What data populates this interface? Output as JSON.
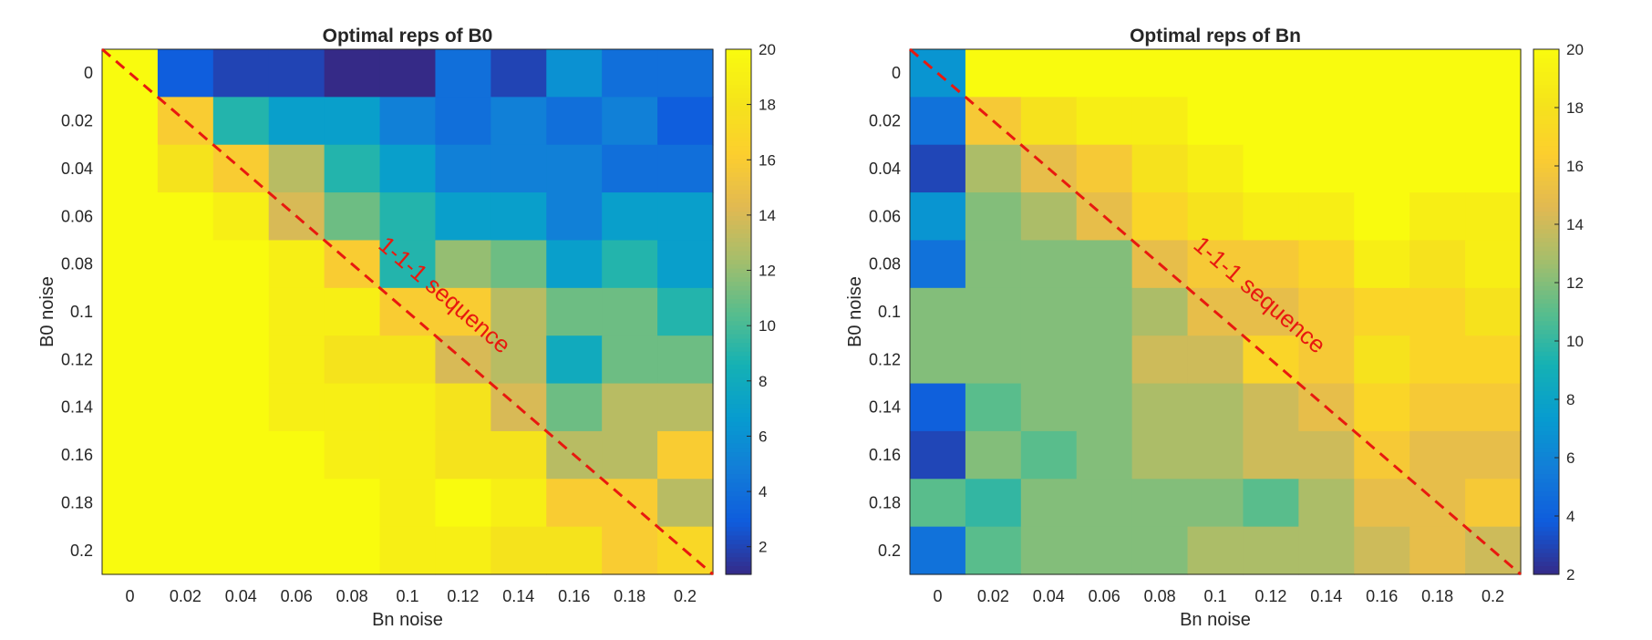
{
  "chart_data": [
    {
      "type": "heatmap",
      "title": "Optimal reps of B0",
      "xlabel": "Bn noise",
      "ylabel": "B0 noise",
      "x": [
        0,
        0.02,
        0.04,
        0.06,
        0.08,
        0.1,
        0.12,
        0.14,
        0.16,
        0.18,
        0.2
      ],
      "y": [
        0,
        0.02,
        0.04,
        0.06,
        0.08,
        0.1,
        0.12,
        0.14,
        0.16,
        0.18,
        0.2
      ],
      "x_tick_labels": [
        "0",
        "0.02",
        "0.04",
        "0.06",
        "0.08",
        "0.1",
        "0.12",
        "0.14",
        "0.16",
        "0.18",
        "0.2"
      ],
      "y_tick_labels": [
        "0",
        "0.02",
        "0.04",
        "0.06",
        "0.08",
        "0.1",
        "0.12",
        "0.14",
        "0.16",
        "0.18",
        "0.2"
      ],
      "values": [
        [
          20,
          3,
          2,
          2,
          1,
          1,
          4,
          2,
          6,
          4,
          4
        ],
        [
          20,
          16,
          9,
          7,
          7,
          5,
          4,
          5,
          4,
          5,
          3
        ],
        [
          20,
          18,
          16,
          13,
          9,
          7,
          5,
          5,
          5,
          4,
          4
        ],
        [
          20,
          20,
          19,
          14,
          11,
          9,
          7,
          7,
          5,
          7,
          7
        ],
        [
          20,
          20,
          20,
          19,
          16,
          9,
          12,
          11,
          7,
          9,
          7
        ],
        [
          20,
          20,
          20,
          19,
          19,
          16,
          16,
          13,
          11,
          11,
          9
        ],
        [
          20,
          20,
          20,
          19,
          18,
          18,
          14,
          13,
          8,
          11,
          11
        ],
        [
          20,
          20,
          20,
          19,
          19,
          19,
          18,
          14,
          11,
          13,
          13
        ],
        [
          20,
          20,
          20,
          20,
          19,
          19,
          18,
          18,
          13,
          13,
          16
        ],
        [
          20,
          20,
          20,
          20,
          20,
          19,
          20,
          19,
          16,
          16,
          13
        ],
        [
          20,
          20,
          20,
          20,
          20,
          19,
          19,
          18,
          18,
          16,
          17
        ]
      ],
      "colorbar": {
        "min": 1,
        "max": 20,
        "ticks": [
          2,
          4,
          6,
          8,
          10,
          12,
          14,
          16,
          18,
          20
        ]
      },
      "annotation": {
        "text": "1-1-1 sequence",
        "color": "#e8190f",
        "style": "dashed diagonal line"
      }
    },
    {
      "type": "heatmap",
      "title": "Optimal reps of Bn",
      "xlabel": "Bn noise",
      "ylabel": "B0 noise",
      "x": [
        0,
        0.02,
        0.04,
        0.06,
        0.08,
        0.1,
        0.12,
        0.14,
        0.16,
        0.18,
        0.2
      ],
      "y": [
        0,
        0.02,
        0.04,
        0.06,
        0.08,
        0.1,
        0.12,
        0.14,
        0.16,
        0.18,
        0.2
      ],
      "x_tick_labels": [
        "0",
        "0.02",
        "0.04",
        "0.06",
        "0.08",
        "0.1",
        "0.12",
        "0.14",
        "0.16",
        "0.18",
        "0.2"
      ],
      "y_tick_labels": [
        "0",
        "0.02",
        "0.04",
        "0.06",
        "0.08",
        "0.1",
        "0.12",
        "0.14",
        "0.16",
        "0.18",
        "0.2"
      ],
      "values": [
        [
          7,
          20,
          20,
          20,
          20,
          20,
          20,
          20,
          20,
          20,
          20
        ],
        [
          5,
          16,
          18,
          19,
          19,
          20,
          20,
          20,
          20,
          20,
          20
        ],
        [
          3,
          13,
          15,
          16,
          18,
          19,
          20,
          20,
          20,
          20,
          20
        ],
        [
          7,
          12,
          13,
          15,
          17,
          18,
          19,
          19,
          20,
          19,
          19
        ],
        [
          5,
          12,
          12,
          12,
          15,
          16,
          16,
          17,
          19,
          18,
          19
        ],
        [
          12,
          12,
          12,
          12,
          13,
          15,
          15,
          16,
          17,
          17,
          18
        ],
        [
          12,
          12,
          12,
          12,
          14,
          14,
          17,
          16,
          18,
          17,
          17
        ],
        [
          4,
          11,
          12,
          12,
          13,
          13,
          14,
          15,
          17,
          16,
          16
        ],
        [
          3,
          12,
          11,
          12,
          13,
          13,
          14,
          14,
          16,
          15,
          15
        ],
        [
          11,
          10,
          12,
          12,
          12,
          12,
          11,
          13,
          15,
          15,
          16
        ],
        [
          5,
          11,
          12,
          12,
          12,
          13,
          13,
          13,
          14,
          15,
          14
        ]
      ],
      "colorbar": {
        "min": 2,
        "max": 20,
        "ticks": [
          2,
          4,
          6,
          8,
          10,
          12,
          14,
          16,
          18,
          20
        ]
      },
      "annotation": {
        "text": "1-1-1 sequence",
        "color": "#e8190f",
        "style": "dashed diagonal line"
      }
    }
  ]
}
